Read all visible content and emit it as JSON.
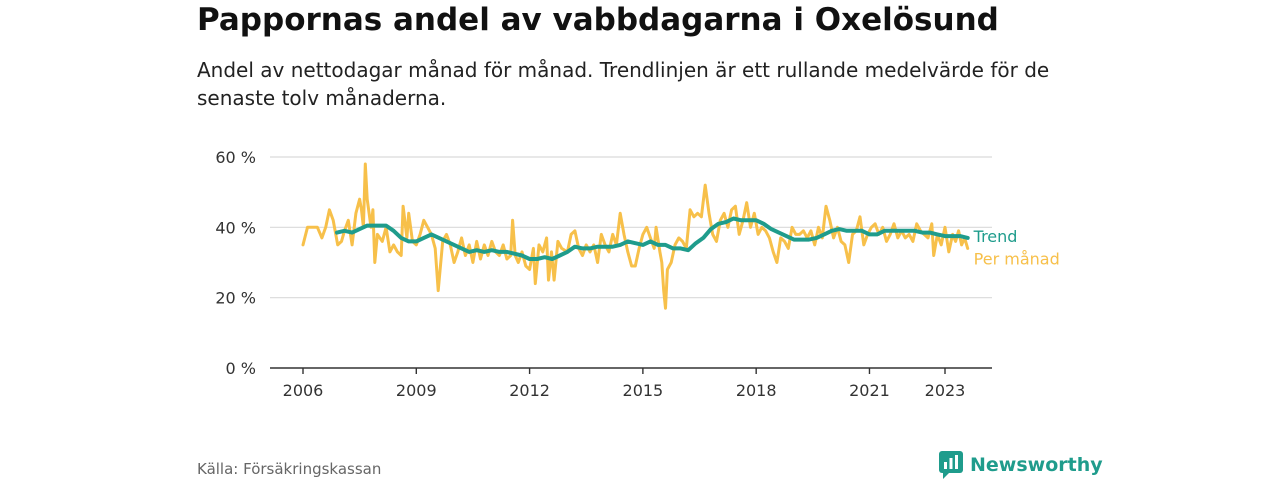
{
  "header": {
    "title": "Pappornas andel av vabbdagarna i Oxelösund",
    "subtitle": "Andel av nettodagar månad för månad. Trendlinjen är ett rullande medelvärde för de senaste tolv månaderna."
  },
  "footer": {
    "source": "Källa: Försäkringskassan",
    "brand": "Newsworthy",
    "brand_icon": "newsworthy-logo-icon"
  },
  "colors": {
    "trend": "#1f9c8c",
    "monthly": "#f7c04a",
    "grid": "#d9d9d9",
    "axis": "#333333"
  },
  "chart_data": {
    "type": "line",
    "title": "Pappornas andel av vabbdagarna i Oxelösund",
    "subtitle": "Andel av nettodagar månad för månad. Trendlinjen är ett rullande medelvärde för de senaste tolv månaderna.",
    "xlabel": "",
    "ylabel": "",
    "ylim": [
      0,
      60
    ],
    "xlim": [
      2006,
      2023.7
    ],
    "yticks": [
      0,
      20,
      40,
      60
    ],
    "ytick_labels": [
      "0 %",
      "20 %",
      "40 %",
      "60 %"
    ],
    "xticks": [
      2006,
      2009,
      2012,
      2015,
      2018,
      2021,
      2023
    ],
    "xtick_labels": [
      "2006",
      "2009",
      "2012",
      "2015",
      "2018",
      "2021",
      "2023"
    ],
    "grid": true,
    "legend": "inline labels at right end of lines",
    "series": [
      {
        "name": "Per månad",
        "points": [
          [
            2006.0,
            35
          ],
          [
            2006.12,
            40
          ],
          [
            2006.25,
            40
          ],
          [
            2006.38,
            40
          ],
          [
            2006.5,
            37
          ],
          [
            2006.6,
            40
          ],
          [
            2006.7,
            45
          ],
          [
            2006.8,
            42
          ],
          [
            2006.92,
            35
          ],
          [
            2007.02,
            36
          ],
          [
            2007.1,
            39
          ],
          [
            2007.2,
            42
          ],
          [
            2007.3,
            35
          ],
          [
            2007.4,
            44
          ],
          [
            2007.5,
            48
          ],
          [
            2007.55,
            45
          ],
          [
            2007.6,
            40
          ],
          [
            2007.65,
            58
          ],
          [
            2007.7,
            48
          ],
          [
            2007.8,
            40
          ],
          [
            2007.85,
            45
          ],
          [
            2007.9,
            30
          ],
          [
            2007.97,
            38
          ],
          [
            2008.1,
            36
          ],
          [
            2008.2,
            40
          ],
          [
            2008.3,
            33
          ],
          [
            2008.4,
            35
          ],
          [
            2008.5,
            33
          ],
          [
            2008.6,
            32
          ],
          [
            2008.65,
            46
          ],
          [
            2008.75,
            37
          ],
          [
            2008.8,
            44
          ],
          [
            2008.9,
            36
          ],
          [
            2009.0,
            35
          ],
          [
            2009.1,
            38
          ],
          [
            2009.2,
            42
          ],
          [
            2009.3,
            40
          ],
          [
            2009.4,
            38
          ],
          [
            2009.5,
            34
          ],
          [
            2009.58,
            22
          ],
          [
            2009.7,
            36
          ],
          [
            2009.8,
            38
          ],
          [
            2009.9,
            35
          ],
          [
            2010.0,
            30
          ],
          [
            2010.1,
            33
          ],
          [
            2010.2,
            37
          ],
          [
            2010.3,
            32
          ],
          [
            2010.4,
            35
          ],
          [
            2010.5,
            30
          ],
          [
            2010.6,
            36
          ],
          [
            2010.7,
            31
          ],
          [
            2010.8,
            35
          ],
          [
            2010.9,
            32
          ],
          [
            2011.0,
            36
          ],
          [
            2011.1,
            33
          ],
          [
            2011.2,
            32
          ],
          [
            2011.3,
            35
          ],
          [
            2011.4,
            31
          ],
          [
            2011.5,
            32
          ],
          [
            2011.55,
            42
          ],
          [
            2011.62,
            32
          ],
          [
            2011.7,
            30
          ],
          [
            2011.8,
            33
          ],
          [
            2011.9,
            29
          ],
          [
            2012.0,
            28
          ],
          [
            2012.1,
            34
          ],
          [
            2012.15,
            24
          ],
          [
            2012.25,
            35
          ],
          [
            2012.35,
            33
          ],
          [
            2012.45,
            37
          ],
          [
            2012.5,
            25
          ],
          [
            2012.58,
            33
          ],
          [
            2012.65,
            25
          ],
          [
            2012.75,
            36
          ],
          [
            2012.85,
            34
          ],
          [
            2013.0,
            33
          ],
          [
            2013.1,
            38
          ],
          [
            2013.2,
            39
          ],
          [
            2013.3,
            34
          ],
          [
            2013.4,
            32
          ],
          [
            2013.5,
            35
          ],
          [
            2013.6,
            33
          ],
          [
            2013.7,
            35
          ],
          [
            2013.8,
            30
          ],
          [
            2013.9,
            38
          ],
          [
            2014.0,
            35
          ],
          [
            2014.1,
            33
          ],
          [
            2014.2,
            38
          ],
          [
            2014.3,
            35
          ],
          [
            2014.4,
            44
          ],
          [
            2014.5,
            38
          ],
          [
            2014.6,
            33
          ],
          [
            2014.7,
            29
          ],
          [
            2014.8,
            29
          ],
          [
            2014.9,
            34
          ],
          [
            2015.0,
            38
          ],
          [
            2015.1,
            40
          ],
          [
            2015.2,
            37
          ],
          [
            2015.3,
            34
          ],
          [
            2015.35,
            40
          ],
          [
            2015.45,
            33
          ],
          [
            2015.5,
            30
          ],
          [
            2015.55,
            22
          ],
          [
            2015.6,
            17
          ],
          [
            2015.65,
            28
          ],
          [
            2015.75,
            30
          ],
          [
            2015.85,
            35
          ],
          [
            2015.95,
            37
          ],
          [
            2016.05,
            36
          ],
          [
            2016.15,
            34
          ],
          [
            2016.25,
            45
          ],
          [
            2016.35,
            43
          ],
          [
            2016.45,
            44
          ],
          [
            2016.55,
            43
          ],
          [
            2016.65,
            52
          ],
          [
            2016.75,
            44
          ],
          [
            2016.85,
            38
          ],
          [
            2016.95,
            36
          ],
          [
            2017.05,
            42
          ],
          [
            2017.15,
            44
          ],
          [
            2017.25,
            40
          ],
          [
            2017.35,
            45
          ],
          [
            2017.45,
            46
          ],
          [
            2017.55,
            38
          ],
          [
            2017.65,
            42
          ],
          [
            2017.75,
            47
          ],
          [
            2017.85,
            40
          ],
          [
            2017.95,
            44
          ],
          [
            2018.05,
            38
          ],
          [
            2018.15,
            40
          ],
          [
            2018.25,
            39
          ],
          [
            2018.35,
            37
          ],
          [
            2018.45,
            33
          ],
          [
            2018.55,
            30
          ],
          [
            2018.65,
            37
          ],
          [
            2018.75,
            36
          ],
          [
            2018.85,
            34
          ],
          [
            2018.95,
            40
          ],
          [
            2019.05,
            38
          ],
          [
            2019.15,
            38
          ],
          [
            2019.25,
            39
          ],
          [
            2019.35,
            37
          ],
          [
            2019.45,
            39
          ],
          [
            2019.55,
            35
          ],
          [
            2019.65,
            40
          ],
          [
            2019.75,
            37
          ],
          [
            2019.85,
            46
          ],
          [
            2019.95,
            42
          ],
          [
            2020.05,
            37
          ],
          [
            2020.15,
            40
          ],
          [
            2020.25,
            36
          ],
          [
            2020.35,
            35
          ],
          [
            2020.45,
            30
          ],
          [
            2020.55,
            38
          ],
          [
            2020.65,
            39
          ],
          [
            2020.75,
            43
          ],
          [
            2020.85,
            35
          ],
          [
            2020.95,
            38
          ],
          [
            2021.05,
            40
          ],
          [
            2021.15,
            41
          ],
          [
            2021.25,
            38
          ],
          [
            2021.35,
            40
          ],
          [
            2021.45,
            36
          ],
          [
            2021.55,
            38
          ],
          [
            2021.65,
            41
          ],
          [
            2021.75,
            37
          ],
          [
            2021.85,
            39
          ],
          [
            2021.95,
            37
          ],
          [
            2022.05,
            38
          ],
          [
            2022.15,
            36
          ],
          [
            2022.25,
            41
          ],
          [
            2022.35,
            39
          ],
          [
            2022.45,
            38
          ],
          [
            2022.55,
            37
          ],
          [
            2022.65,
            41
          ],
          [
            2022.7,
            32
          ],
          [
            2022.8,
            38
          ],
          [
            2022.9,
            35
          ],
          [
            2023.0,
            40
          ],
          [
            2023.1,
            33
          ],
          [
            2023.2,
            38
          ],
          [
            2023.28,
            36
          ],
          [
            2023.36,
            39
          ],
          [
            2023.44,
            35
          ],
          [
            2023.52,
            37
          ],
          [
            2023.6,
            34
          ]
        ]
      },
      {
        "name": "Trend",
        "points": [
          [
            2006.9,
            38.5
          ],
          [
            2007.1,
            39
          ],
          [
            2007.3,
            38.5
          ],
          [
            2007.5,
            39.5
          ],
          [
            2007.7,
            40.5
          ],
          [
            2008.0,
            40.5
          ],
          [
            2008.2,
            40.5
          ],
          [
            2008.4,
            39
          ],
          [
            2008.6,
            37
          ],
          [
            2008.8,
            36
          ],
          [
            2009.0,
            36
          ],
          [
            2009.2,
            37
          ],
          [
            2009.4,
            38
          ],
          [
            2009.6,
            37
          ],
          [
            2009.8,
            36
          ],
          [
            2010.0,
            35
          ],
          [
            2010.2,
            34
          ],
          [
            2010.4,
            33
          ],
          [
            2010.6,
            33.5
          ],
          [
            2010.8,
            33
          ],
          [
            2011.0,
            33.5
          ],
          [
            2011.2,
            33
          ],
          [
            2011.4,
            33
          ],
          [
            2011.6,
            32.5
          ],
          [
            2011.8,
            32
          ],
          [
            2012.0,
            31
          ],
          [
            2012.2,
            31
          ],
          [
            2012.4,
            31.5
          ],
          [
            2012.6,
            31
          ],
          [
            2012.8,
            32
          ],
          [
            2013.0,
            33
          ],
          [
            2013.2,
            34.5
          ],
          [
            2013.4,
            34
          ],
          [
            2013.6,
            34
          ],
          [
            2013.8,
            34.5
          ],
          [
            2014.0,
            34.5
          ],
          [
            2014.2,
            34.5
          ],
          [
            2014.4,
            35
          ],
          [
            2014.6,
            36
          ],
          [
            2014.8,
            35.5
          ],
          [
            2015.0,
            35
          ],
          [
            2015.2,
            36
          ],
          [
            2015.4,
            35
          ],
          [
            2015.6,
            35
          ],
          [
            2015.8,
            34
          ],
          [
            2016.0,
            34
          ],
          [
            2016.2,
            33.5
          ],
          [
            2016.4,
            35.5
          ],
          [
            2016.6,
            37
          ],
          [
            2016.8,
            39.5
          ],
          [
            2017.0,
            41
          ],
          [
            2017.2,
            41.5
          ],
          [
            2017.4,
            42.5
          ],
          [
            2017.6,
            42
          ],
          [
            2017.8,
            42
          ],
          [
            2018.0,
            42
          ],
          [
            2018.2,
            41
          ],
          [
            2018.4,
            39.5
          ],
          [
            2018.6,
            38.5
          ],
          [
            2018.8,
            37.5
          ],
          [
            2019.0,
            36.5
          ],
          [
            2019.2,
            36.5
          ],
          [
            2019.4,
            36.5
          ],
          [
            2019.6,
            37
          ],
          [
            2019.8,
            38
          ],
          [
            2020.0,
            39
          ],
          [
            2020.2,
            39.5
          ],
          [
            2020.4,
            39
          ],
          [
            2020.6,
            39
          ],
          [
            2020.8,
            39
          ],
          [
            2021.0,
            38
          ],
          [
            2021.2,
            38
          ],
          [
            2021.4,
            39
          ],
          [
            2021.6,
            39
          ],
          [
            2021.8,
            39
          ],
          [
            2022.0,
            39
          ],
          [
            2022.2,
            39
          ],
          [
            2022.4,
            38.5
          ],
          [
            2022.6,
            38.5
          ],
          [
            2022.8,
            38
          ],
          [
            2023.0,
            37.5
          ],
          [
            2023.2,
            37.5
          ],
          [
            2023.4,
            37.5
          ],
          [
            2023.6,
            37
          ]
        ]
      }
    ]
  }
}
